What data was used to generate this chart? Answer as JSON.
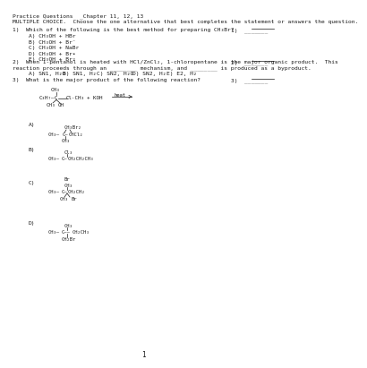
{
  "title": "Practice Questions  _Chapter 11, 12, 13",
  "subtitle": "MULTIPLE CHOICE.  Choose the one alternative that best completes the statement or answers the question.",
  "q1_line": "1)  Which of the following is the best method for preparing CH₃Br?",
  "q1_blank": "1)  _______",
  "q1_opts": [
    "A) CH₃OH + HBr",
    "B) CH₃OH + Br⁻",
    "C) CH₃OH + NaBr",
    "D) CH₃OH + Br•",
    "E) CH₃OH + Br₂"
  ],
  "q2_line1": "2)  When 1-pentanol is heated with HCl/ZnCl₂, 1-chloropentane is the major organic product.  This",
  "q2_line2": "reaction proceeds through an ________ mechanism, and ________ is produced as a byproduct.",
  "q2_blank": "2)  _______",
  "q2_opts": [
    "A) SN1, H₂O",
    "B) SN1, H₂",
    "C) SN2, H₂O",
    "D) SN2, H₂",
    "E) E2, H₂"
  ],
  "q3_line": "3)  What is the major product of the following reaction?",
  "q3_blank": "3)  _______",
  "bg": "#ffffff",
  "fg": "#1a1a1a",
  "fs": 4.8
}
